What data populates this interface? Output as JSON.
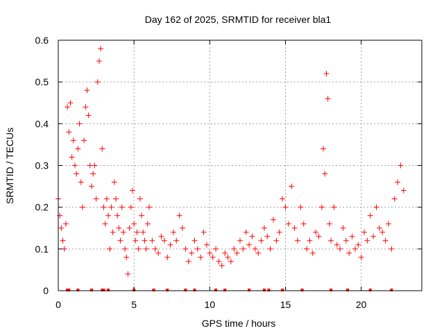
{
  "chart_data": {
    "type": "scatter",
    "title": "Day 162 of 2025, SRMTID for receiver bla1",
    "xlabel": "GPS time / hours",
    "ylabel": "SRMTID / TECUs",
    "xlim": [
      0,
      24
    ],
    "ylim": [
      0,
      0.6
    ],
    "x_ticks": [
      "0",
      "5",
      "10",
      "15",
      "20"
    ],
    "y_ticks": [
      "0",
      "0.1",
      "0.2",
      "0.3",
      "0.4",
      "0.5",
      "0.6"
    ],
    "grid": true,
    "marker": "+",
    "color": "#ff0000",
    "series": [
      {
        "name": "SRMTID",
        "x": [
          0.0,
          0.1,
          0.2,
          0.3,
          0.4,
          0.5,
          0.6,
          0.7,
          0.8,
          0.9,
          1.0,
          1.1,
          1.2,
          1.3,
          1.4,
          1.5,
          1.6,
          1.7,
          1.8,
          1.9,
          2.0,
          2.1,
          2.2,
          2.3,
          2.4,
          2.5,
          2.6,
          2.7,
          2.8,
          2.9,
          3.0,
          3.1,
          3.2,
          3.3,
          3.4,
          3.5,
          3.6,
          3.7,
          3.8,
          3.9,
          4.0,
          4.1,
          4.2,
          4.3,
          4.4,
          4.5,
          4.6,
          4.7,
          4.8,
          4.9,
          5.0,
          5.1,
          5.2,
          5.3,
          5.4,
          5.5,
          5.6,
          5.7,
          5.8,
          5.9,
          6.0,
          6.2,
          6.4,
          6.6,
          6.8,
          7.0,
          7.2,
          7.4,
          7.6,
          7.8,
          8.0,
          8.2,
          8.4,
          8.6,
          8.8,
          9.0,
          9.2,
          9.4,
          9.6,
          9.8,
          10.0,
          10.2,
          10.4,
          10.6,
          10.8,
          11.0,
          11.2,
          11.4,
          11.6,
          11.8,
          12.0,
          12.2,
          12.4,
          12.6,
          12.8,
          13.0,
          13.2,
          13.4,
          13.6,
          13.8,
          14.0,
          14.2,
          14.4,
          14.6,
          14.8,
          15.0,
          15.2,
          15.4,
          15.6,
          15.8,
          16.0,
          16.2,
          16.4,
          16.6,
          16.8,
          17.0,
          17.2,
          17.4,
          17.5,
          17.6,
          17.7,
          17.8,
          17.9,
          18.0,
          18.2,
          18.4,
          18.6,
          18.8,
          19.0,
          19.2,
          19.4,
          19.6,
          19.8,
          20.0,
          20.2,
          20.4,
          20.6,
          20.8,
          21.0,
          21.2,
          21.4,
          21.6,
          21.8,
          22.0,
          22.2,
          22.4,
          22.6,
          22.8
        ],
        "y": [
          0.22,
          0.18,
          0.15,
          0.12,
          0.1,
          0.16,
          0.44,
          0.38,
          0.45,
          0.32,
          0.36,
          0.3,
          0.28,
          0.34,
          0.4,
          0.26,
          0.2,
          0.36,
          0.44,
          0.48,
          0.42,
          0.3,
          0.25,
          0.28,
          0.3,
          0.22,
          0.5,
          0.55,
          0.58,
          0.34,
          0.2,
          0.16,
          0.22,
          0.18,
          0.1,
          0.2,
          0.14,
          0.26,
          0.22,
          0.18,
          0.15,
          0.12,
          0.2,
          0.14,
          0.1,
          0.08,
          0.04,
          0.15,
          0.2,
          0.24,
          0.16,
          0.12,
          0.14,
          0.1,
          0.22,
          0.18,
          0.14,
          0.12,
          0.1,
          0.16,
          0.2,
          0.12,
          0.1,
          0.09,
          0.13,
          0.12,
          0.08,
          0.11,
          0.14,
          0.12,
          0.18,
          0.15,
          0.1,
          0.07,
          0.09,
          0.12,
          0.1,
          0.08,
          0.14,
          0.11,
          0.09,
          0.08,
          0.1,
          0.07,
          0.06,
          0.09,
          0.08,
          0.07,
          0.1,
          0.09,
          0.12,
          0.1,
          0.14,
          0.11,
          0.13,
          0.1,
          0.09,
          0.12,
          0.15,
          0.13,
          0.1,
          0.17,
          0.12,
          0.14,
          0.22,
          0.2,
          0.16,
          0.25,
          0.15,
          0.12,
          0.2,
          0.16,
          0.1,
          0.12,
          0.09,
          0.14,
          0.13,
          0.2,
          0.34,
          0.28,
          0.52,
          0.46,
          0.16,
          0.12,
          0.2,
          0.11,
          0.1,
          0.15,
          0.12,
          0.09,
          0.13,
          0.1,
          0.11,
          0.08,
          0.14,
          0.12,
          0.18,
          0.13,
          0.2,
          0.15,
          0.14,
          0.12,
          0.16,
          0.1,
          0.22,
          0.26,
          0.3,
          0.24
        ]
      }
    ],
    "data_gaps_x": [
      0.6,
      0.7,
      1.3,
      2.2,
      2.9,
      3.0,
      3.3,
      5.0,
      6.3,
      7.2,
      8.4,
      9.0,
      10.4,
      11.0,
      12.6,
      13.6,
      13.9,
      14.8,
      16.1,
      18.0,
      19.1,
      20.6,
      22.0
    ]
  }
}
